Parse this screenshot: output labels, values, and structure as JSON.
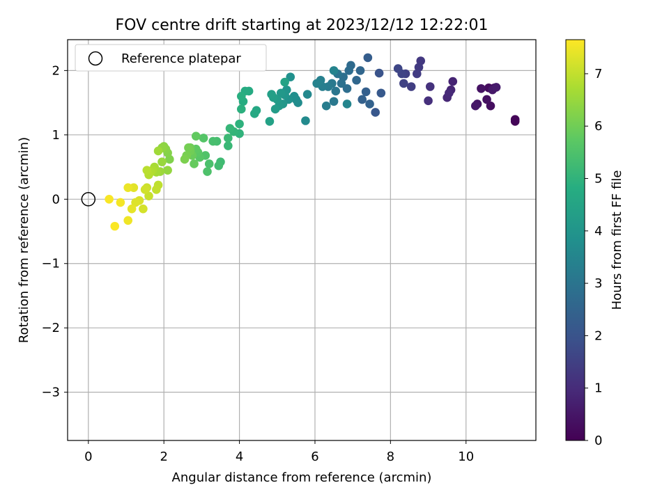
{
  "chart_data": {
    "type": "scatter",
    "title": "FOV centre drift starting at 2023/12/12 12:22:01",
    "xlabel": "Angular distance from reference (arcmin)",
    "ylabel": "Rotation from reference (arcmin)",
    "colorbar_label": "Hours from first FF file",
    "xlim": [
      -0.55,
      11.85
    ],
    "ylim": [
      -3.75,
      2.48
    ],
    "clim": [
      0,
      7.65
    ],
    "x_ticks": [
      0,
      2,
      4,
      6,
      8,
      10
    ],
    "y_ticks": [
      2,
      1,
      0,
      -1,
      -2,
      -3
    ],
    "colorbar_ticks": [
      0,
      1,
      2,
      3,
      4,
      5,
      6,
      7
    ],
    "grid": true,
    "colormap": "viridis",
    "legend": {
      "position": "top-left",
      "entries": [
        "Reference platepar"
      ]
    },
    "reference_point": {
      "x": 0,
      "y": 0
    },
    "points": [
      [
        11.3,
        1.21,
        0.05
      ],
      [
        11.3,
        1.24,
        0.1
      ],
      [
        10.75,
        1.73,
        0.2
      ],
      [
        10.6,
        1.73,
        0.25
      ],
      [
        10.65,
        1.45,
        0.3
      ],
      [
        10.55,
        1.55,
        0.35
      ],
      [
        10.4,
        1.72,
        0.4
      ],
      [
        10.3,
        1.48,
        0.45
      ],
      [
        10.25,
        1.45,
        0.5
      ],
      [
        10.7,
        1.7,
        0.55
      ],
      [
        10.8,
        1.74,
        0.6
      ],
      [
        9.65,
        1.83,
        0.8
      ],
      [
        9.6,
        1.7,
        0.85
      ],
      [
        9.5,
        1.58,
        0.9
      ],
      [
        9.55,
        1.65,
        0.95
      ],
      [
        9.0,
        1.53,
        1.1
      ],
      [
        9.05,
        1.75,
        1.15
      ],
      [
        8.8,
        2.15,
        1.3
      ],
      [
        8.75,
        2.05,
        1.35
      ],
      [
        8.7,
        1.95,
        1.4
      ],
      [
        8.55,
        1.75,
        1.45
      ],
      [
        8.4,
        1.95,
        1.5
      ],
      [
        8.35,
        1.8,
        1.55
      ],
      [
        8.3,
        1.95,
        1.6
      ],
      [
        8.2,
        2.03,
        1.65
      ],
      [
        7.7,
        1.96,
        2.0
      ],
      [
        7.6,
        1.35,
        2.1
      ],
      [
        7.75,
        1.65,
        2.15
      ],
      [
        7.4,
        2.2,
        2.3
      ],
      [
        7.35,
        1.67,
        2.35
      ],
      [
        7.25,
        1.55,
        2.4
      ],
      [
        7.45,
        1.48,
        2.45
      ],
      [
        7.2,
        2.0,
        2.55
      ],
      [
        7.1,
        1.85,
        2.6
      ],
      [
        6.95,
        2.08,
        2.7
      ],
      [
        6.9,
        2.0,
        2.75
      ],
      [
        6.85,
        1.72,
        2.8
      ],
      [
        6.75,
        1.9,
        2.85
      ],
      [
        6.7,
        1.8,
        2.9
      ],
      [
        6.6,
        1.95,
        3.0
      ],
      [
        6.55,
        1.68,
        3.05
      ],
      [
        6.5,
        1.52,
        3.1
      ],
      [
        6.45,
        1.8,
        3.15
      ],
      [
        6.35,
        1.75,
        3.2
      ],
      [
        6.3,
        1.45,
        3.25
      ],
      [
        6.2,
        1.75,
        3.3
      ],
      [
        6.15,
        1.85,
        3.35
      ],
      [
        6.05,
        1.8,
        3.4
      ],
      [
        6.5,
        2.0,
        3.45
      ],
      [
        6.85,
        1.48,
        3.5
      ],
      [
        5.8,
        1.63,
        3.6
      ],
      [
        5.75,
        1.22,
        3.65
      ],
      [
        5.55,
        1.5,
        3.7
      ],
      [
        5.5,
        1.55,
        3.75
      ],
      [
        5.45,
        1.6,
        3.8
      ],
      [
        5.35,
        1.9,
        3.85
      ],
      [
        5.3,
        1.55,
        3.9
      ],
      [
        5.25,
        1.7,
        3.95
      ],
      [
        5.2,
        1.62,
        4.0
      ],
      [
        5.15,
        1.48,
        4.05
      ],
      [
        5.1,
        1.65,
        4.1
      ],
      [
        5.05,
        1.45,
        4.15
      ],
      [
        5.0,
        1.55,
        4.2
      ],
      [
        4.95,
        1.4,
        4.25
      ],
      [
        4.9,
        1.58,
        4.3
      ],
      [
        4.85,
        1.63,
        4.35
      ],
      [
        4.8,
        1.21,
        4.4
      ],
      [
        5.2,
        1.82,
        4.45
      ],
      [
        4.45,
        1.38,
        4.6
      ],
      [
        4.4,
        1.33,
        4.65
      ],
      [
        4.25,
        1.68,
        4.7
      ],
      [
        4.15,
        1.68,
        4.75
      ],
      [
        4.1,
        1.52,
        4.8
      ],
      [
        4.05,
        1.6,
        4.85
      ],
      [
        4.05,
        1.4,
        4.9
      ],
      [
        4.0,
        1.17,
        4.95
      ],
      [
        4.0,
        1.02,
        5.0
      ],
      [
        3.85,
        1.05,
        5.05
      ],
      [
        3.75,
        1.1,
        5.1
      ],
      [
        3.7,
        0.83,
        5.15
      ],
      [
        3.7,
        0.95,
        5.2
      ],
      [
        3.5,
        0.58,
        5.25
      ],
      [
        3.45,
        0.52,
        5.3
      ],
      [
        3.4,
        0.9,
        5.35
      ],
      [
        3.3,
        0.9,
        5.4
      ],
      [
        3.2,
        0.55,
        5.45
      ],
      [
        3.15,
        0.43,
        5.5
      ],
      [
        3.1,
        0.68,
        5.55
      ],
      [
        3.05,
        0.95,
        5.6
      ],
      [
        2.95,
        0.65,
        5.65
      ],
      [
        2.9,
        0.73,
        5.7
      ],
      [
        2.85,
        0.78,
        5.75
      ],
      [
        2.85,
        0.98,
        5.8
      ],
      [
        2.8,
        0.55,
        5.85
      ],
      [
        2.75,
        0.68,
        5.9
      ],
      [
        2.7,
        0.8,
        5.95
      ],
      [
        2.7,
        0.75,
        6.0
      ],
      [
        2.65,
        0.8,
        6.05
      ],
      [
        2.6,
        0.68,
        6.1
      ],
      [
        2.55,
        0.62,
        6.15
      ],
      [
        2.15,
        0.62,
        6.2
      ],
      [
        2.1,
        0.72,
        6.25
      ],
      [
        2.05,
        0.78,
        6.3
      ],
      [
        2.0,
        0.82,
        6.35
      ],
      [
        1.95,
        0.8,
        6.4
      ],
      [
        2.1,
        0.45,
        6.45
      ],
      [
        1.95,
        0.58,
        6.5
      ],
      [
        1.9,
        0.43,
        6.55
      ],
      [
        1.85,
        0.75,
        6.6
      ],
      [
        1.8,
        0.42,
        6.65
      ],
      [
        1.75,
        0.5,
        6.7
      ],
      [
        1.7,
        0.45,
        6.75
      ],
      [
        1.65,
        0.42,
        6.8
      ],
      [
        1.6,
        0.38,
        6.85
      ],
      [
        1.55,
        0.45,
        6.9
      ],
      [
        1.85,
        0.22,
        6.95
      ],
      [
        1.8,
        0.15,
        7.0
      ],
      [
        1.6,
        0.05,
        7.05
      ],
      [
        1.55,
        0.18,
        7.1
      ],
      [
        1.5,
        0.15,
        7.15
      ],
      [
        1.45,
        -0.15,
        7.2
      ],
      [
        1.35,
        -0.02,
        7.25
      ],
      [
        1.25,
        -0.05,
        7.3
      ],
      [
        1.2,
        0.18,
        7.35
      ],
      [
        1.15,
        -0.15,
        7.4
      ],
      [
        1.05,
        0.18,
        7.45
      ],
      [
        1.05,
        -0.33,
        7.5
      ],
      [
        0.85,
        -0.05,
        7.55
      ],
      [
        0.55,
        0.0,
        7.6
      ],
      [
        0.7,
        -0.42,
        7.62
      ]
    ]
  }
}
